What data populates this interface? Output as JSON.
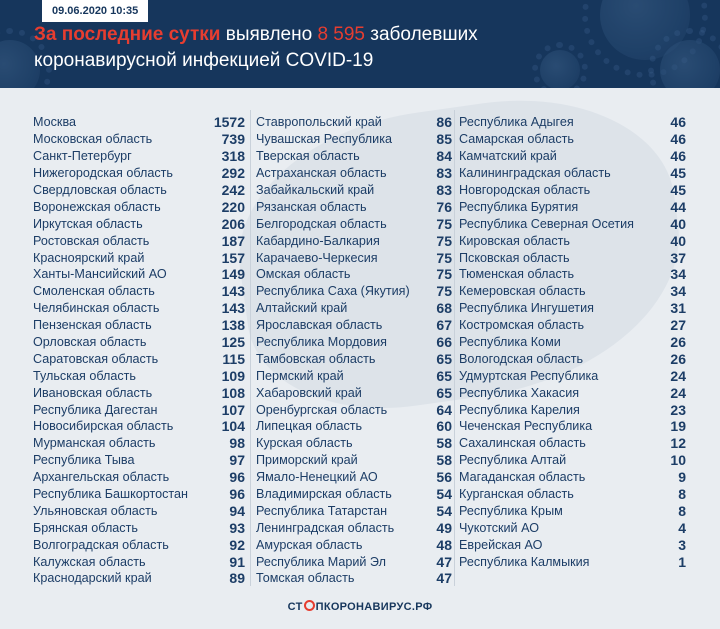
{
  "header": {
    "date": "09.06.2020 10:35",
    "title_part1": "За последние сутки",
    "title_part2": " выявлено ",
    "title_part3": "8 595",
    "title_part4": " заболевших",
    "title_line2": "коронавирусной инфекцией COVID-19"
  },
  "columns": [
    [
      {
        "region": "Москва",
        "count": "1572"
      },
      {
        "region": "Московская область",
        "count": "739"
      },
      {
        "region": "Санкт-Петербург",
        "count": "318"
      },
      {
        "region": "Нижегородская область",
        "count": "292"
      },
      {
        "region": "Свердловская область",
        "count": "242"
      },
      {
        "region": "Воронежская область",
        "count": "220"
      },
      {
        "region": "Иркутская область",
        "count": "206"
      },
      {
        "region": "Ростовская область",
        "count": "187"
      },
      {
        "region": "Красноярский край",
        "count": "157"
      },
      {
        "region": "Ханты-Мансийский АО",
        "count": "149"
      },
      {
        "region": "Смоленская область",
        "count": "143"
      },
      {
        "region": "Челябинская область",
        "count": "143"
      },
      {
        "region": "Пензенская область",
        "count": "138"
      },
      {
        "region": "Орловская область",
        "count": "125"
      },
      {
        "region": "Саратовская область",
        "count": "115"
      },
      {
        "region": "Тульская область",
        "count": "109"
      },
      {
        "region": "Ивановская область",
        "count": "108"
      },
      {
        "region": "Республика Дагестан",
        "count": "107"
      },
      {
        "region": "Новосибирская область",
        "count": "104"
      },
      {
        "region": "Мурманская область",
        "count": "98"
      },
      {
        "region": "Республика Тыва",
        "count": "97"
      },
      {
        "region": "Архангельская область",
        "count": "96"
      },
      {
        "region": "Республика Башкортостан",
        "count": "96"
      },
      {
        "region": "Ульяновская область",
        "count": "94"
      },
      {
        "region": "Брянская область",
        "count": "93"
      },
      {
        "region": "Волгоградская область",
        "count": "92"
      },
      {
        "region": "Калужская область",
        "count": "91"
      },
      {
        "region": "Краснодарский край",
        "count": "89"
      }
    ],
    [
      {
        "region": "Ставропольский край",
        "count": "86"
      },
      {
        "region": "Чувашская Республика",
        "count": "85"
      },
      {
        "region": "Тверская область",
        "count": "84"
      },
      {
        "region": "Астраханская область",
        "count": "83"
      },
      {
        "region": "Забайкальский край",
        "count": "83"
      },
      {
        "region": "Рязанская область",
        "count": "76"
      },
      {
        "region": "Белгородская область",
        "count": "75"
      },
      {
        "region": "Кабардино-Балкария",
        "count": "75"
      },
      {
        "region": "Карачаево-Черкесия",
        "count": "75"
      },
      {
        "region": "Омская область",
        "count": "75"
      },
      {
        "region": "Республика Саха (Якутия)",
        "count": "75"
      },
      {
        "region": "Алтайский край",
        "count": "68"
      },
      {
        "region": "Ярославская область",
        "count": "67"
      },
      {
        "region": "Республика Мордовия",
        "count": "66"
      },
      {
        "region": "Тамбовская область",
        "count": "65"
      },
      {
        "region": "Пермский край",
        "count": "65"
      },
      {
        "region": "Хабаровский край",
        "count": "65"
      },
      {
        "region": "Оренбургская область",
        "count": "64"
      },
      {
        "region": "Липецкая область",
        "count": "60"
      },
      {
        "region": "Курская область",
        "count": "58"
      },
      {
        "region": "Приморский край",
        "count": "58"
      },
      {
        "region": "Ямало-Ненецкий АО",
        "count": "56"
      },
      {
        "region": "Владимирская область",
        "count": "54"
      },
      {
        "region": "Республика Татарстан",
        "count": "54"
      },
      {
        "region": "Ленинградская область",
        "count": "49"
      },
      {
        "region": "Амурская область",
        "count": "48"
      },
      {
        "region": "Республика Марий Эл",
        "count": "47"
      },
      {
        "region": "Томская область",
        "count": "47"
      }
    ],
    [
      {
        "region": "Республика Адыгея",
        "count": "46"
      },
      {
        "region": "Самарская область",
        "count": "46"
      },
      {
        "region": "Камчатский край",
        "count": "46"
      },
      {
        "region": "Калининградская область",
        "count": "45"
      },
      {
        "region": "Новгородская область",
        "count": "45"
      },
      {
        "region": "Республика Бурятия",
        "count": "44"
      },
      {
        "region": "Республика Северная Осетия",
        "count": "40"
      },
      {
        "region": "Кировская область",
        "count": "40"
      },
      {
        "region": "Псковская область",
        "count": "37"
      },
      {
        "region": "Тюменская область",
        "count": "34"
      },
      {
        "region": "Кемеровская область",
        "count": "34"
      },
      {
        "region": "Республика Ингушетия",
        "count": "31"
      },
      {
        "region": "Костромская область",
        "count": "27"
      },
      {
        "region": "Республика Коми",
        "count": "26"
      },
      {
        "region": "Вологодская область",
        "count": "26"
      },
      {
        "region": "Удмуртская Республика",
        "count": "24"
      },
      {
        "region": "Республика Хакасия",
        "count": "24"
      },
      {
        "region": "Республика Карелия",
        "count": "23"
      },
      {
        "region": "Чеченская Республика",
        "count": "19"
      },
      {
        "region": "Сахалинская область",
        "count": "12"
      },
      {
        "region": "Республика Алтай",
        "count": "10"
      },
      {
        "region": "Магаданская область",
        "count": "9"
      },
      {
        "region": "Курганская область",
        "count": "8"
      },
      {
        "region": "Республика Крым",
        "count": "8"
      },
      {
        "region": "Чукотский АО",
        "count": "4"
      },
      {
        "region": "Еврейская АО",
        "count": "3"
      },
      {
        "region": "Республика Калмыкия",
        "count": "1"
      }
    ]
  ],
  "footer": {
    "logo_part1": "СТ",
    "logo_part2": "ПКОРОНАВИРУС.РФ"
  },
  "colors": {
    "header_bg": "#16365c",
    "accent": "#e63d30",
    "text": "#1c3d66",
    "body_bg": "#e9edf1"
  }
}
